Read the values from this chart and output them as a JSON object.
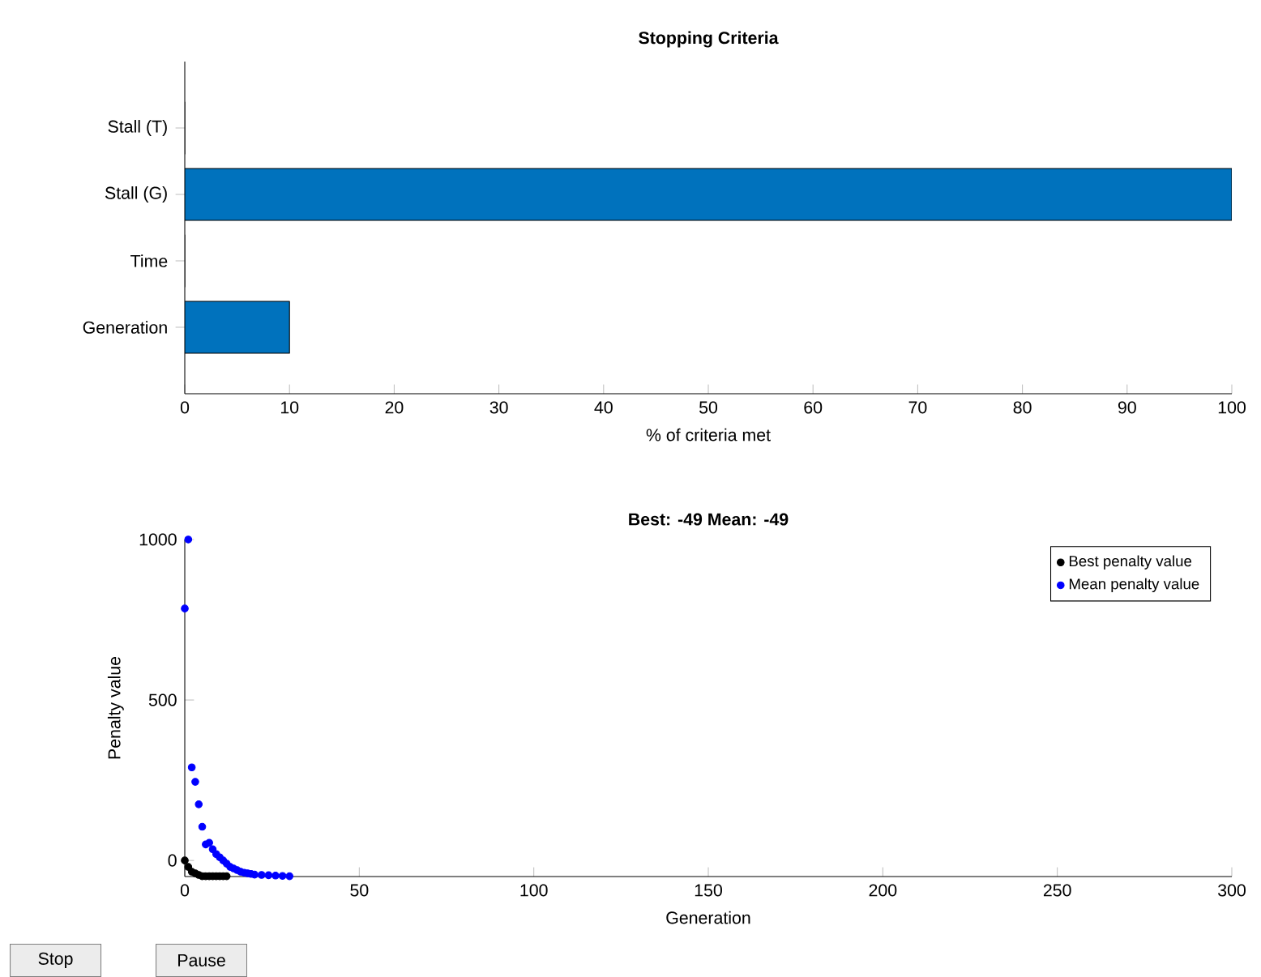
{
  "chart_data": [
    {
      "type": "bar",
      "orientation": "horizontal",
      "title": "Stopping Criteria",
      "xlabel": "% of criteria met",
      "categories": [
        "Stall (T)",
        "Stall (G)",
        "Time",
        "Generation"
      ],
      "values": [
        0,
        100,
        0,
        10
      ],
      "color": "#0072bd",
      "xlim": [
        0,
        100
      ],
      "xticks": [
        0,
        10,
        20,
        30,
        40,
        50,
        60,
        70,
        80,
        90,
        100
      ],
      "grid": false
    },
    {
      "type": "scatter",
      "title": "Best: -49 Mean: -49",
      "xlabel": "Generation",
      "ylabel": "Penalty value",
      "xlim": [
        0,
        300
      ],
      "ylim": [
        -50,
        1000
      ],
      "xticks": [
        0,
        50,
        100,
        150,
        200,
        250,
        300
      ],
      "yticks": [
        0,
        500,
        1000
      ],
      "legend": "top right",
      "grid": false,
      "series": [
        {
          "name": "Best penalty value",
          "color": "#000000",
          "x": [
            0,
            1,
            2,
            3,
            4,
            5,
            6,
            7,
            8,
            9,
            10,
            11,
            12
          ],
          "values": [
            0,
            -20,
            -35,
            -40,
            -45,
            -49,
            -49,
            -49,
            -49,
            -49,
            -49,
            -49,
            -49
          ]
        },
        {
          "name": "Mean penalty value",
          "color": "#0000ff",
          "x": [
            0,
            1,
            2,
            3,
            4,
            5,
            6,
            7,
            8,
            9,
            10,
            11,
            12,
            13,
            14,
            15,
            16,
            17,
            18,
            19,
            20,
            22,
            24,
            26,
            28,
            30
          ],
          "values": [
            785,
            1000,
            290,
            245,
            175,
            105,
            50,
            55,
            35,
            20,
            10,
            0,
            -10,
            -20,
            -25,
            -30,
            -35,
            -38,
            -40,
            -42,
            -44,
            -45,
            -46,
            -47,
            -48,
            -49
          ]
        }
      ],
      "annotations": [
        "Stop",
        "Pause"
      ]
    }
  ]
}
